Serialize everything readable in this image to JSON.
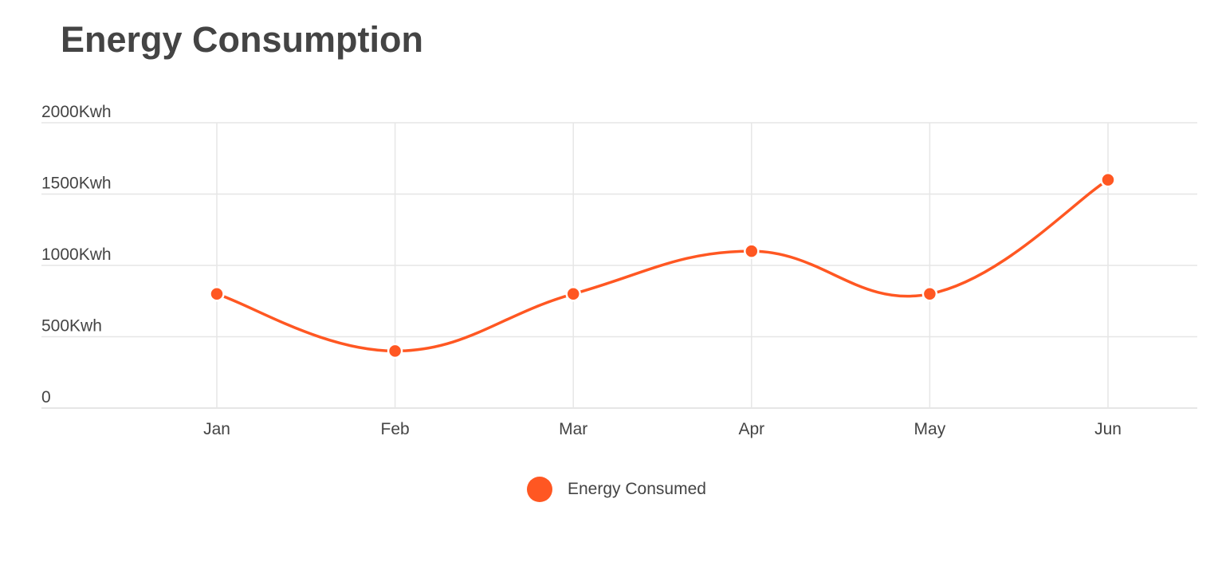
{
  "chart_data": {
    "type": "line",
    "title": "Energy Consumption",
    "categories": [
      "Jan",
      "Feb",
      "Mar",
      "Apr",
      "May",
      "Jun"
    ],
    "series": [
      {
        "name": "Energy Consumed",
        "values": [
          800,
          400,
          800,
          1100,
          800,
          1600
        ],
        "color": "#ff5722"
      }
    ],
    "ylim": [
      0,
      2000
    ],
    "yticks": [
      {
        "value": 0,
        "label": "0"
      },
      {
        "value": 500,
        "label": "500Kwh"
      },
      {
        "value": 1000,
        "label": "1000Kwh"
      },
      {
        "value": 1500,
        "label": "1500Kwh"
      },
      {
        "value": 2000,
        "label": "2000Kwh"
      }
    ],
    "grid": true,
    "smooth": true,
    "legend_position": "bottom-center",
    "colors": {
      "grid": "#e6e6e6",
      "text": "#444444"
    }
  }
}
